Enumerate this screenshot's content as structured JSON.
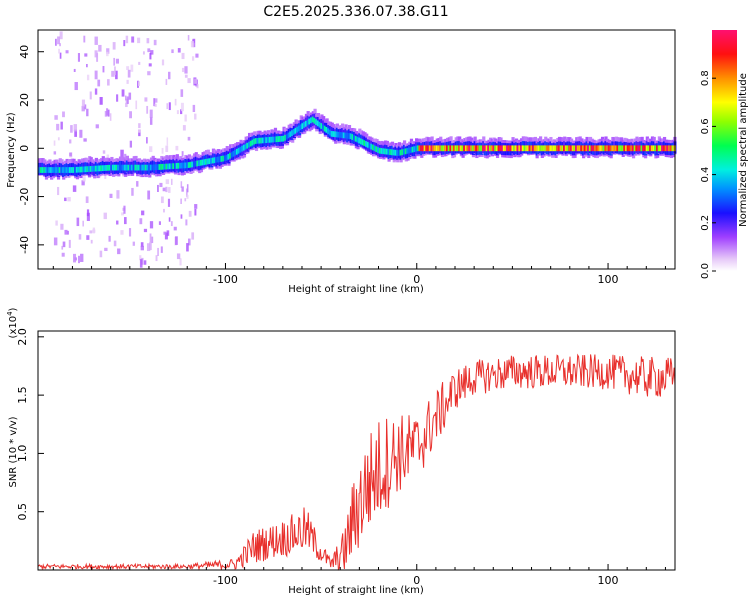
{
  "title": "C2E5.2025.336.07.38.G11",
  "colors": {
    "line": "#e8302c",
    "axis": "#000000"
  },
  "chart_data": [
    {
      "type": "heatmap",
      "title": "C2E5.2025.336.07.38.G11",
      "xlabel": "Height of straight line (km)",
      "ylabel": "Frequency (Hz)",
      "xlim": [
        -198,
        135
      ],
      "ylim": [
        -50,
        49
      ],
      "xticks": [
        -100,
        0,
        100
      ],
      "xtick_labels": [
        "-100",
        "0",
        "100"
      ],
      "yticks": [
        -40,
        -20,
        0,
        20,
        40
      ],
      "ytick_labels": [
        "-40",
        "-20",
        "0",
        "20",
        "40"
      ],
      "colorbar": {
        "label": "Normalized spectral amplitude",
        "range": [
          0,
          1
        ],
        "ticks": [
          0.0,
          0.2,
          0.4,
          0.6,
          0.8
        ],
        "tick_labels": [
          "0.0",
          "0.2",
          "0.4",
          "0.6",
          "0.8"
        ]
      },
      "ridge": [
        {
          "x": -198,
          "f": -9,
          "a": 0.45
        },
        {
          "x": -180,
          "f": -9,
          "a": 0.45
        },
        {
          "x": -160,
          "f": -8,
          "a": 0.35
        },
        {
          "x": -140,
          "f": -8,
          "a": 0.3
        },
        {
          "x": -120,
          "f": -7,
          "a": 0.3
        },
        {
          "x": -100,
          "f": -4,
          "a": 0.35
        },
        {
          "x": -85,
          "f": 3,
          "a": 0.45
        },
        {
          "x": -70,
          "f": 4,
          "a": 0.5
        },
        {
          "x": -55,
          "f": 12,
          "a": 0.55
        },
        {
          "x": -45,
          "f": 6,
          "a": 0.55
        },
        {
          "x": -35,
          "f": 5,
          "a": 0.6
        },
        {
          "x": -20,
          "f": -1,
          "a": 0.85
        },
        {
          "x": -10,
          "f": -2,
          "a": 0.7
        },
        {
          "x": 0,
          "f": 0,
          "a": 0.9
        },
        {
          "x": 50,
          "f": 0,
          "a": 0.9
        },
        {
          "x": 100,
          "f": 0,
          "a": 0.9
        },
        {
          "x": 135,
          "f": 0,
          "a": 0.9
        }
      ]
    },
    {
      "type": "line",
      "xlabel": "Height of straight line (km)",
      "ylabel": "SNR (10 * v/v)",
      "exponent_label": "(x10",
      "exponent_power": "4",
      "exponent_close": ")",
      "xlim": [
        -198,
        135
      ],
      "ylim": [
        0,
        2.05
      ],
      "xticks": [
        -100,
        0,
        100
      ],
      "xtick_labels": [
        "-100",
        "0",
        "100"
      ],
      "yticks": [
        0.5,
        1.0,
        1.5,
        2.0
      ],
      "ytick_labels": [
        "0.5",
        "1.0",
        "1.5",
        "2.0"
      ],
      "envelope": {
        "x": [
          -198,
          -120,
          -95,
          -85,
          -75,
          -65,
          -58,
          -52,
          -45,
          -38,
          -32,
          -25,
          -18,
          -10,
          0,
          10,
          20,
          30,
          50,
          100,
          120,
          135
        ],
        "mean": [
          0.03,
          0.03,
          0.05,
          0.2,
          0.25,
          0.3,
          0.35,
          0.2,
          0.05,
          0.15,
          0.5,
          0.75,
          0.9,
          1.0,
          1.05,
          1.3,
          1.55,
          1.65,
          1.7,
          1.7,
          1.65,
          1.65
        ],
        "amp": [
          0.02,
          0.02,
          0.05,
          0.15,
          0.15,
          0.18,
          0.2,
          0.12,
          0.05,
          0.2,
          0.4,
          0.45,
          0.45,
          0.35,
          0.3,
          0.25,
          0.18,
          0.15,
          0.15,
          0.15,
          0.18,
          0.18
        ]
      }
    }
  ]
}
